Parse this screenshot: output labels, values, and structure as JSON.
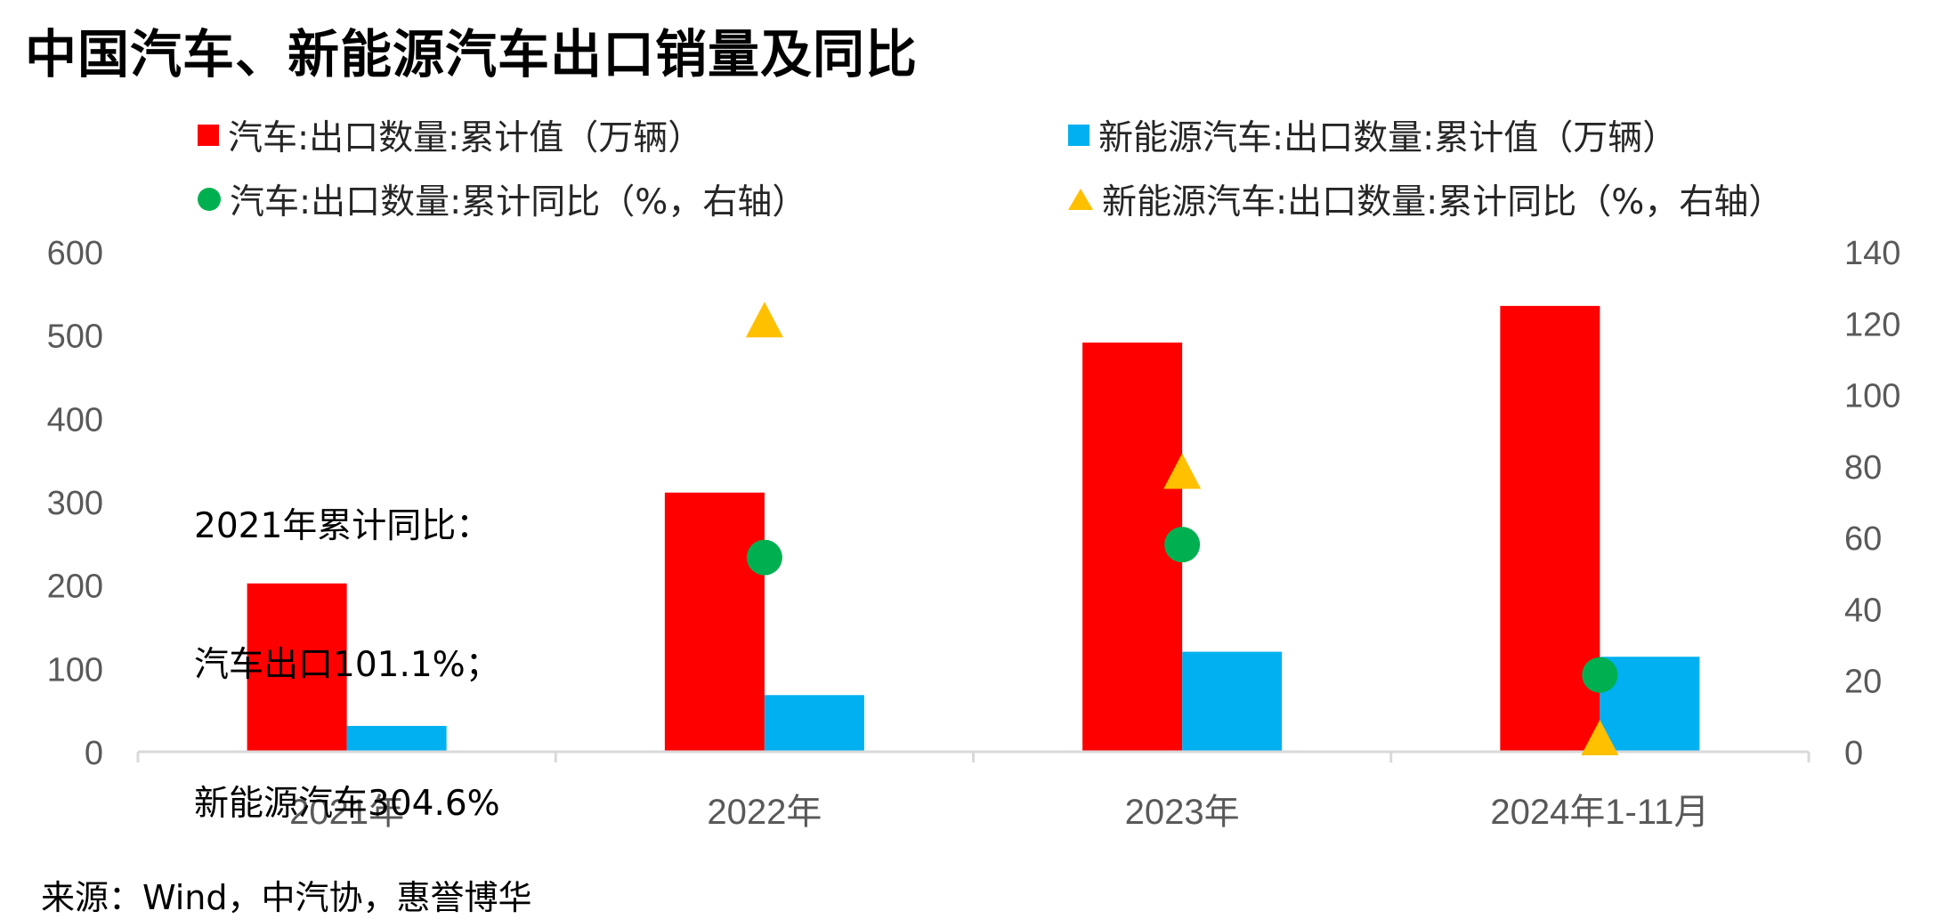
{
  "title": "中国汽车、新能源汽车出口销量及同比",
  "legend": [
    {
      "label": "汽车:出口数量:累计值（万辆）",
      "symbol": "square",
      "color": "#FF0000"
    },
    {
      "label": "新能源汽车:出口数量:累计值（万辆）",
      "symbol": "square",
      "color": "#00B0F0"
    },
    {
      "label": "汽车:出口数量:累计同比（%，右轴）",
      "symbol": "circle",
      "color": "#00B050"
    },
    {
      "label": "新能源汽车:出口数量:累计同比（%，右轴）",
      "symbol": "triangle",
      "color": "#FFC000"
    }
  ],
  "annotation": {
    "line1": "2021年累计同比：",
    "line2": "汽车出口101.1%；",
    "line3": "新能源汽车304.6%"
  },
  "source": "来源：Wind，中汽协，惠誉博华",
  "chart_data": {
    "type": "bar",
    "categories": [
      "2021年",
      "2022年",
      "2023年",
      "2024年1-11月"
    ],
    "series": [
      {
        "name": "汽车:出口数量:累计值（万辆）",
        "type": "bar",
        "axis": "left",
        "color": "#FF0000",
        "values": [
          202,
          311,
          491,
          535
        ]
      },
      {
        "name": "新能源汽车:出口数量:累计值（万辆）",
        "type": "bar",
        "axis": "left",
        "color": "#00B0F0",
        "values": [
          31,
          68,
          120,
          114
        ]
      },
      {
        "name": "汽车:出口数量:累计同比（%，右轴）",
        "type": "scatter",
        "marker": "circle",
        "axis": "right",
        "color": "#00B050",
        "values": [
          null,
          54.4,
          58,
          21.5
        ]
      },
      {
        "name": "新能源汽车:出口数量:累计同比（%，右轴）",
        "type": "scatter",
        "marker": "triangle",
        "axis": "right",
        "color": "#FFC000",
        "values": [
          null,
          120,
          77.6,
          3
        ]
      }
    ],
    "y_left": {
      "min": 0,
      "max": 600,
      "ticks": [
        "0",
        "100",
        "200",
        "300",
        "400",
        "500",
        "600"
      ]
    },
    "y_right": {
      "min": 0,
      "max": 140,
      "ticks": [
        "0",
        "20",
        "40",
        "60",
        "80",
        "100",
        "120",
        "140"
      ]
    },
    "grid": false,
    "legend_position": "top"
  }
}
